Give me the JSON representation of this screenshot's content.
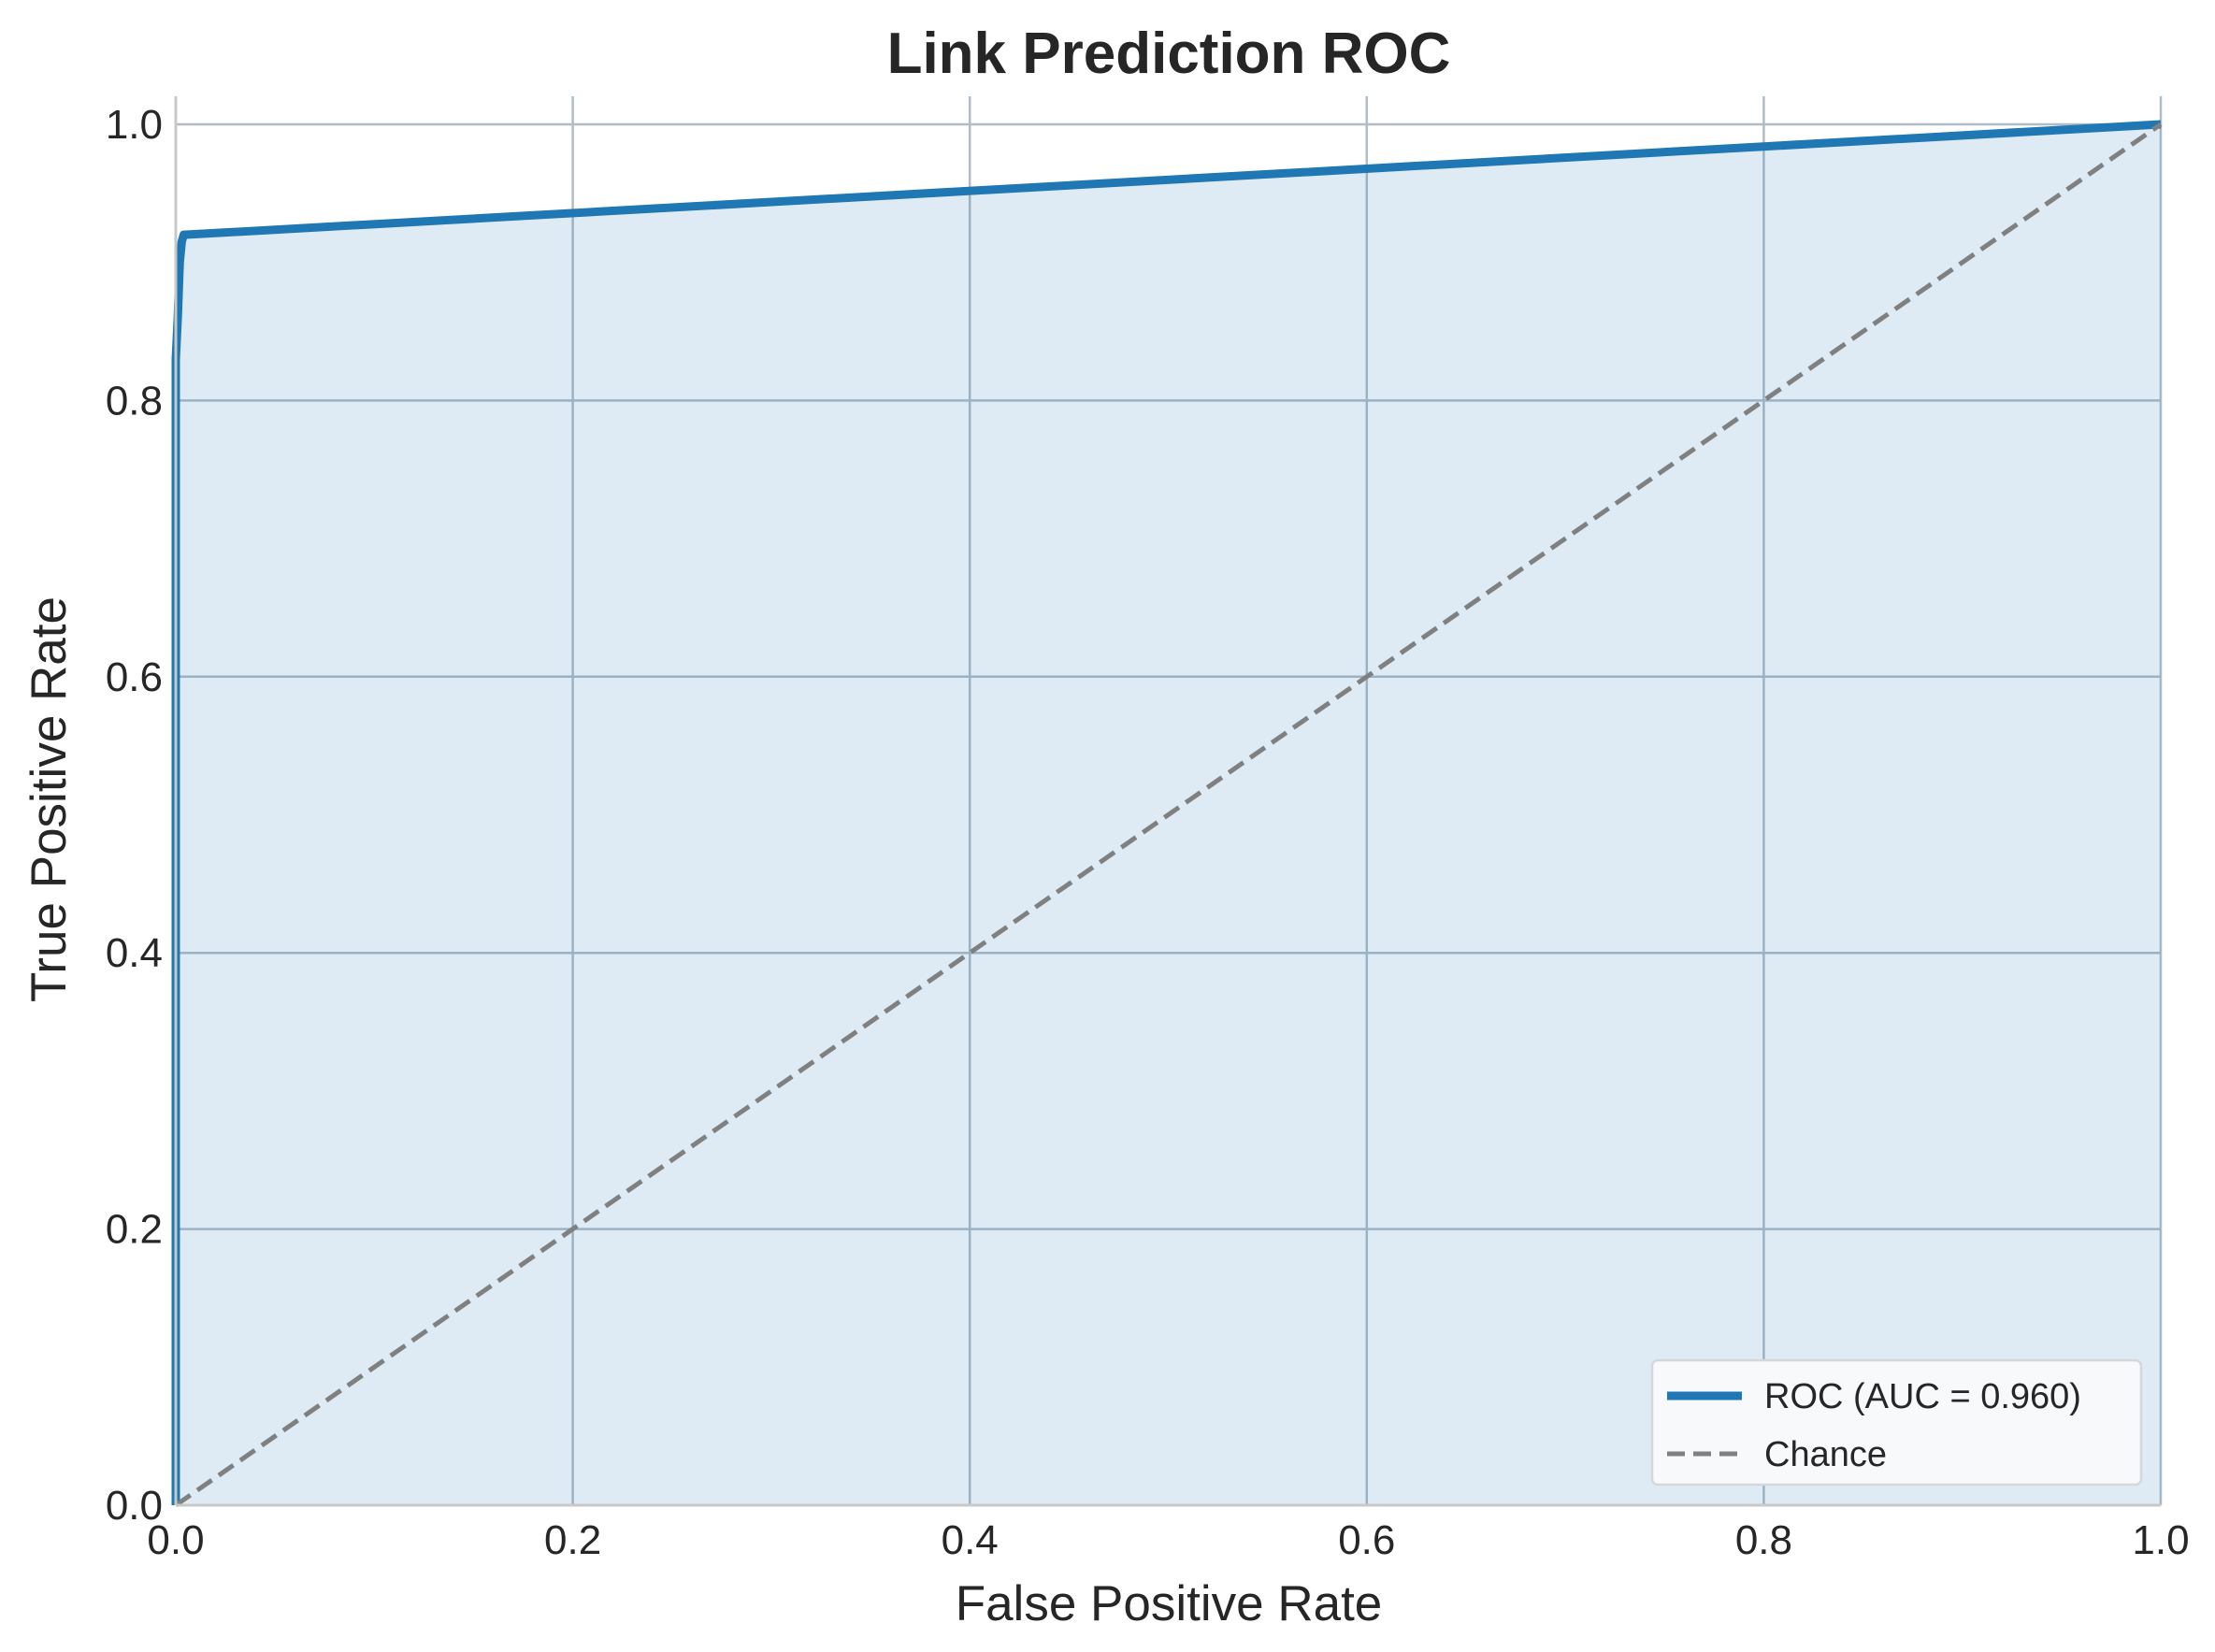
{
  "chart_data": {
    "type": "line",
    "title": "Link Prediction ROC",
    "xlabel": "False Positive Rate",
    "ylabel": "True Positive Rate",
    "xlim": [
      0.0,
      1.0
    ],
    "ylim": [
      0.0,
      1.0
    ],
    "xticks": [
      "0.0",
      "0.2",
      "0.4",
      "0.6",
      "0.8",
      "1.0"
    ],
    "yticks": [
      "0.0",
      "0.2",
      "0.4",
      "0.6",
      "0.8",
      "1.0"
    ],
    "grid": true,
    "legend_position": "lower-right",
    "series": [
      {
        "name": "ROC (AUC = 0.960)",
        "style": "solid",
        "color": "#1f77b4",
        "fill_under": true,
        "x": [
          0.0,
          0.0,
          0.001,
          0.002,
          0.003,
          0.004,
          1.0
        ],
        "y": [
          0.0,
          0.83,
          0.86,
          0.9,
          0.915,
          0.92,
          1.0
        ]
      },
      {
        "name": "Chance",
        "style": "dashed",
        "color": "#808080",
        "x": [
          0.0,
          1.0
        ],
        "y": [
          0.0,
          1.0
        ]
      }
    ]
  }
}
